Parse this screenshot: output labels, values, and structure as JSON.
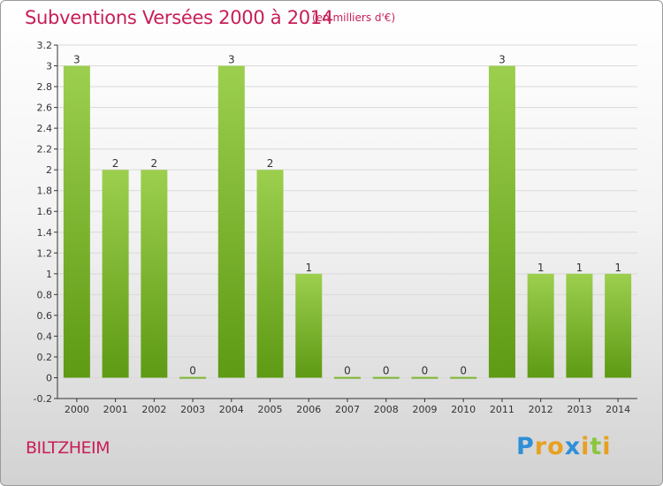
{
  "header": {
    "title": "Subventions Versées 2000 à 2014",
    "unit": "(en milliers d'€)"
  },
  "footer": {
    "commune": "BILTZHEIM",
    "brand_letters": [
      "P",
      "r",
      "o",
      "x",
      "i",
      "t",
      "i"
    ],
    "brand_colors": [
      "#2f8fd8",
      "#e8a020",
      "#e8a020",
      "#2f8fd8",
      "#e8a020",
      "#8cc63e",
      "#e8a020"
    ]
  },
  "colors": {
    "bar_top": "#9ccf4e",
    "bar_bottom": "#5e9a14",
    "axis": "#333333",
    "grid": "#d9d9d9",
    "text": "#333333"
  },
  "chart_data": {
    "type": "bar",
    "categories": [
      "2000",
      "2001",
      "2002",
      "2003",
      "2004",
      "2005",
      "2006",
      "2007",
      "2008",
      "2009",
      "2010",
      "2011",
      "2012",
      "2013",
      "2014"
    ],
    "series": [
      {
        "values": [
          3,
          2,
          2,
          0,
          3,
          2,
          1,
          0,
          0,
          0,
          0,
          3,
          1,
          1,
          1
        ]
      }
    ],
    "data_labels": [
      "3",
      "2",
      "2",
      "0",
      "3",
      "2",
      "1",
      "0",
      "0",
      "0",
      "0",
      "3",
      "1",
      "1",
      "1"
    ],
    "yticks": [
      "-0.2",
      "0",
      "0.2",
      "0.4",
      "0.6",
      "0.8",
      "1",
      "1.2",
      "1.4",
      "1.6",
      "1.8",
      "2",
      "2.2",
      "2.4",
      "2.6",
      "2.8",
      "3",
      "3.2"
    ],
    "ylim": [
      -0.2,
      3.2
    ],
    "xlabel": "",
    "ylabel": "",
    "grid": true
  }
}
